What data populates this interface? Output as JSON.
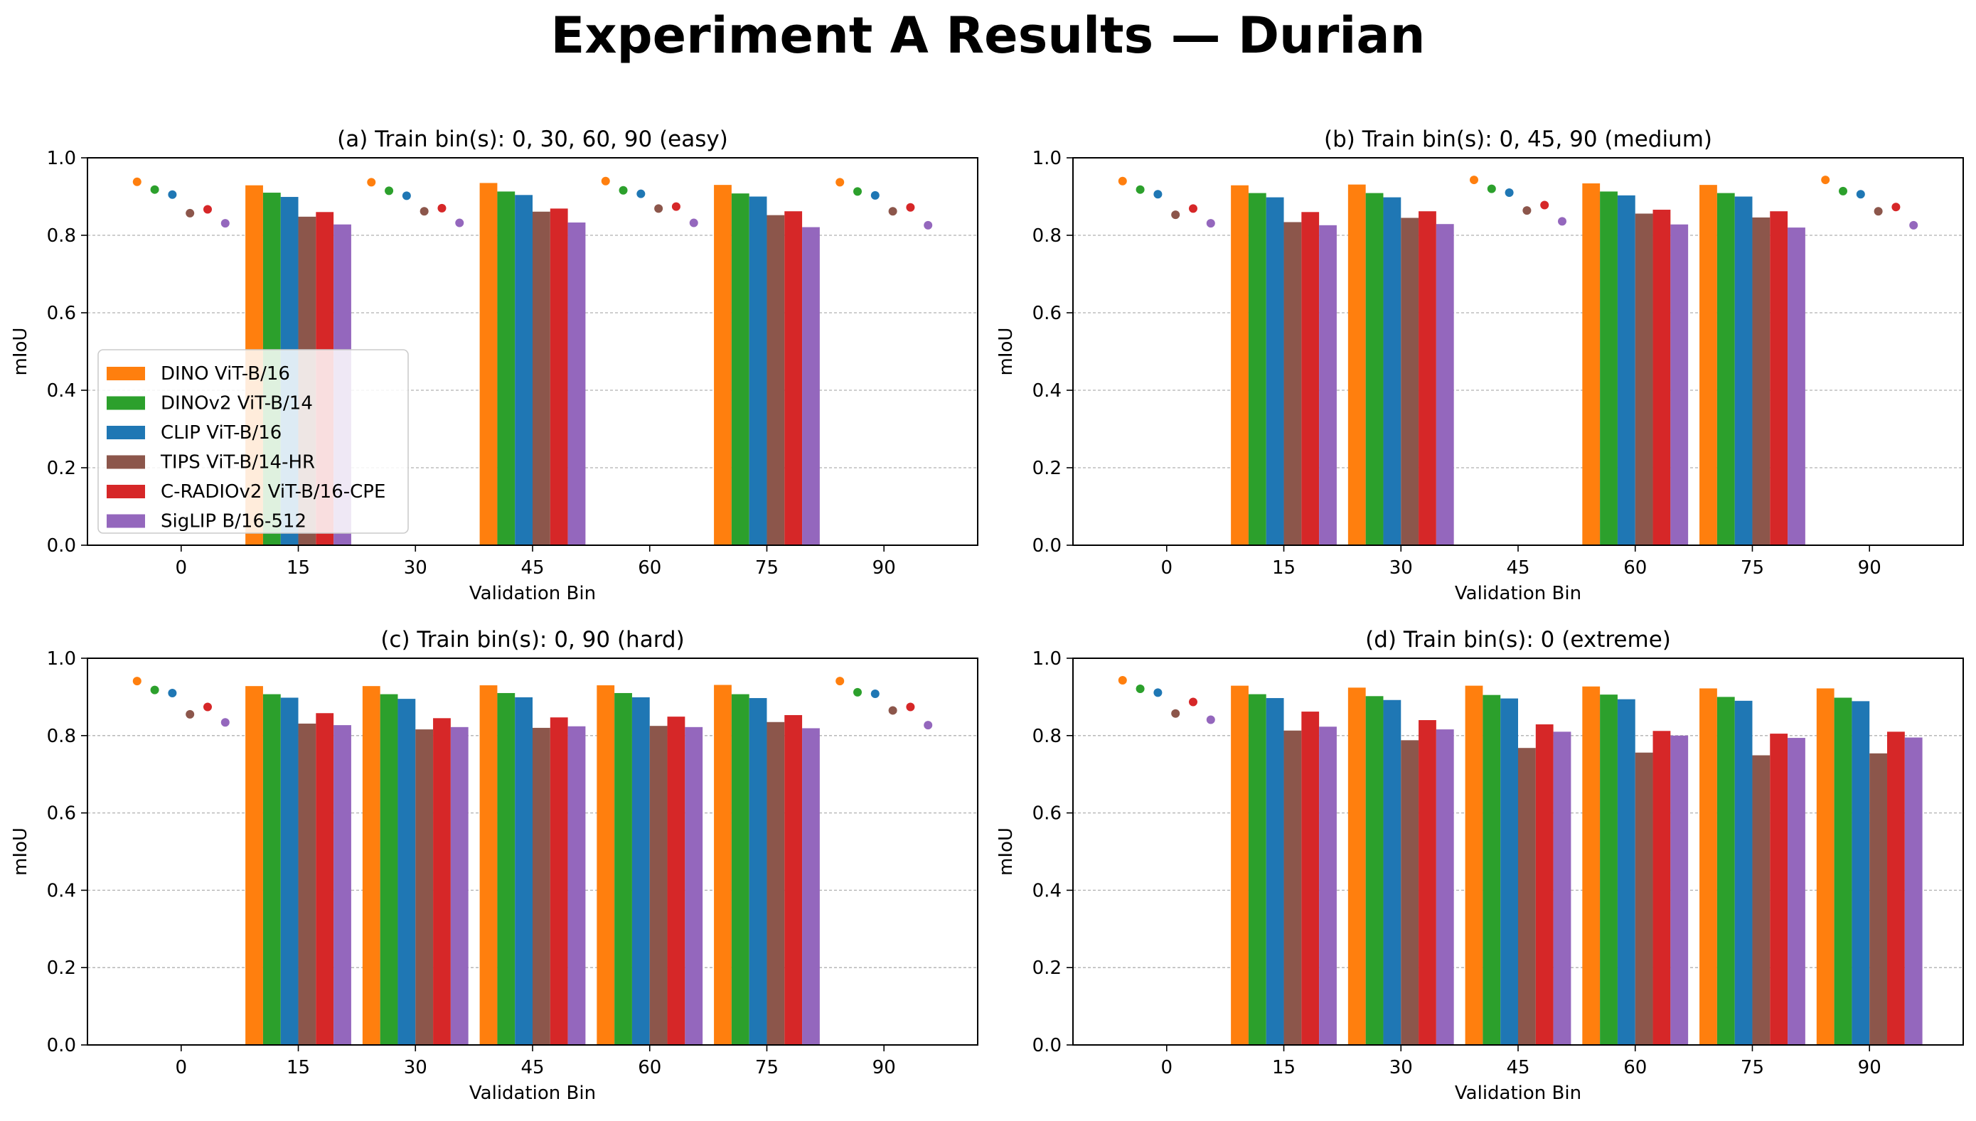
{
  "figure_title": "Experiment A Results — Durian",
  "legend_labels": [
    "DINO ViT-B/16",
    "DINOv2 ViT-B/14",
    "CLIP ViT-B/16",
    "TIPS ViT-B/14-HR",
    "C-RADIOv2 ViT-B/16-CPE",
    "SigLIP B/16-512"
  ],
  "colors": {
    "DINO ViT-B/16": "#ff7f0e",
    "DINOv2 ViT-B/14": "#2ca02c",
    "CLIP ViT-B/16": "#1f77b4",
    "TIPS ViT-B/14-HR": "#8c564b",
    "C-RADIOv2 ViT-B/16-CPE": "#d62728",
    "SigLIP B/16-512": "#9467bd"
  },
  "chart_data": [
    {
      "type": "bar",
      "title": "(a) Train bin(s): 0, 30, 60, 90 (easy)",
      "xlabel": "Validation Bin",
      "ylabel": "mIoU",
      "ylim": [
        0,
        1.0
      ],
      "yticks": [
        "0.0",
        "0.2",
        "0.4",
        "0.6",
        "0.8",
        "1.0"
      ],
      "categories": [
        "0",
        "15",
        "30",
        "45",
        "60",
        "75",
        "90"
      ],
      "train_bins": [
        "0",
        "30",
        "60",
        "90"
      ],
      "grid": "y dashed",
      "legend": "lower-left",
      "series": [
        {
          "name": "DINO ViT-B/16",
          "values": [
            0.938,
            0.929,
            0.937,
            0.935,
            0.94,
            0.93,
            0.937
          ]
        },
        {
          "name": "DINOv2 ViT-B/14",
          "values": [
            0.918,
            0.91,
            0.915,
            0.913,
            0.916,
            0.908,
            0.913
          ]
        },
        {
          "name": "CLIP ViT-B/16",
          "values": [
            0.905,
            0.899,
            0.902,
            0.904,
            0.907,
            0.9,
            0.903
          ]
        },
        {
          "name": "TIPS ViT-B/14-HR",
          "values": [
            0.857,
            0.848,
            0.862,
            0.861,
            0.869,
            0.852,
            0.862
          ]
        },
        {
          "name": "C-RADIOv2 ViT-B/16-CPE",
          "values": [
            0.867,
            0.86,
            0.87,
            0.869,
            0.874,
            0.862,
            0.872
          ]
        },
        {
          "name": "SigLIP B/16-512",
          "values": [
            0.831,
            0.828,
            0.832,
            0.833,
            0.832,
            0.821,
            0.826
          ]
        }
      ]
    },
    {
      "type": "bar",
      "title": "(b) Train bin(s): 0, 45, 90 (medium)",
      "xlabel": "Validation Bin",
      "ylabel": "mIoU",
      "ylim": [
        0,
        1.0
      ],
      "yticks": [
        "0.0",
        "0.2",
        "0.4",
        "0.6",
        "0.8",
        "1.0"
      ],
      "categories": [
        "0",
        "15",
        "30",
        "45",
        "60",
        "75",
        "90"
      ],
      "train_bins": [
        "0",
        "45",
        "90"
      ],
      "grid": "y dashed",
      "series": [
        {
          "name": "DINO ViT-B/16",
          "values": [
            0.94,
            0.929,
            0.931,
            0.943,
            0.934,
            0.93,
            0.943
          ]
        },
        {
          "name": "DINOv2 ViT-B/14",
          "values": [
            0.918,
            0.909,
            0.909,
            0.92,
            0.913,
            0.909,
            0.914
          ]
        },
        {
          "name": "CLIP ViT-B/16",
          "values": [
            0.906,
            0.898,
            0.898,
            0.91,
            0.903,
            0.9,
            0.906
          ]
        },
        {
          "name": "TIPS ViT-B/14-HR",
          "values": [
            0.853,
            0.834,
            0.845,
            0.864,
            0.856,
            0.846,
            0.862
          ]
        },
        {
          "name": "C-RADIOv2 ViT-B/16-CPE",
          "values": [
            0.869,
            0.86,
            0.862,
            0.878,
            0.866,
            0.862,
            0.873
          ]
        },
        {
          "name": "SigLIP B/16-512",
          "values": [
            0.831,
            0.826,
            0.829,
            0.836,
            0.828,
            0.82,
            0.826
          ]
        }
      ]
    },
    {
      "type": "bar",
      "title": "(c) Train bin(s): 0, 90 (hard)",
      "xlabel": "Validation Bin",
      "ylabel": "mIoU",
      "ylim": [
        0,
        1.0
      ],
      "yticks": [
        "0.0",
        "0.2",
        "0.4",
        "0.6",
        "0.8",
        "1.0"
      ],
      "categories": [
        "0",
        "15",
        "30",
        "45",
        "60",
        "75",
        "90"
      ],
      "train_bins": [
        "0",
        "90"
      ],
      "grid": "y dashed",
      "series": [
        {
          "name": "DINO ViT-B/16",
          "values": [
            0.941,
            0.928,
            0.928,
            0.93,
            0.93,
            0.931,
            0.941
          ]
        },
        {
          "name": "DINOv2 ViT-B/14",
          "values": [
            0.918,
            0.907,
            0.907,
            0.91,
            0.91,
            0.907,
            0.912
          ]
        },
        {
          "name": "CLIP ViT-B/16",
          "values": [
            0.91,
            0.898,
            0.895,
            0.899,
            0.899,
            0.897,
            0.908
          ]
        },
        {
          "name": "TIPS ViT-B/14-HR",
          "values": [
            0.855,
            0.831,
            0.816,
            0.82,
            0.825,
            0.835,
            0.865
          ]
        },
        {
          "name": "C-RADIOv2 ViT-B/16-CPE",
          "values": [
            0.874,
            0.858,
            0.845,
            0.847,
            0.849,
            0.853,
            0.874
          ]
        },
        {
          "name": "SigLIP B/16-512",
          "values": [
            0.834,
            0.827,
            0.822,
            0.824,
            0.822,
            0.819,
            0.827
          ]
        }
      ]
    },
    {
      "type": "bar",
      "title": "(d) Train bin(s): 0 (extreme)",
      "xlabel": "Validation Bin",
      "ylabel": "mIoU",
      "ylim": [
        0,
        1.0
      ],
      "yticks": [
        "0.0",
        "0.2",
        "0.4",
        "0.6",
        "0.8",
        "1.0"
      ],
      "categories": [
        "0",
        "15",
        "30",
        "45",
        "60",
        "75",
        "90"
      ],
      "train_bins": [
        "0"
      ],
      "grid": "y dashed",
      "series": [
        {
          "name": "DINO ViT-B/16",
          "values": [
            0.943,
            0.929,
            0.924,
            0.929,
            0.927,
            0.922,
            0.922
          ]
        },
        {
          "name": "DINOv2 ViT-B/14",
          "values": [
            0.921,
            0.907,
            0.902,
            0.905,
            0.906,
            0.9,
            0.898
          ]
        },
        {
          "name": "CLIP ViT-B/16",
          "values": [
            0.911,
            0.897,
            0.892,
            0.896,
            0.894,
            0.89,
            0.889
          ]
        },
        {
          "name": "TIPS ViT-B/14-HR",
          "values": [
            0.857,
            0.813,
            0.788,
            0.768,
            0.756,
            0.749,
            0.754
          ]
        },
        {
          "name": "C-RADIOv2 ViT-B/16-CPE",
          "values": [
            0.887,
            0.862,
            0.84,
            0.829,
            0.812,
            0.805,
            0.81
          ]
        },
        {
          "name": "SigLIP B/16-512",
          "values": [
            0.841,
            0.823,
            0.816,
            0.81,
            0.8,
            0.794,
            0.795
          ]
        }
      ]
    }
  ]
}
